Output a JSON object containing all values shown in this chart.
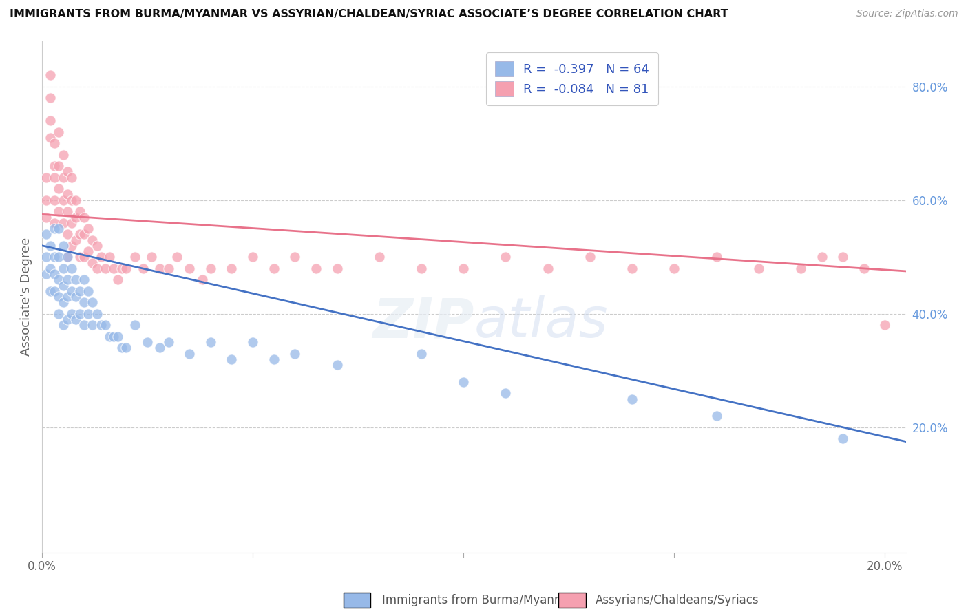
{
  "title": "IMMIGRANTS FROM BURMA/MYANMAR VS ASSYRIAN/CHALDEAN/SYRIAC ASSOCIATE’S DEGREE CORRELATION CHART",
  "source": "Source: ZipAtlas.com",
  "ylabel": "Associate's Degree",
  "right_ytick_vals": [
    0.2,
    0.4,
    0.6,
    0.8
  ],
  "right_ytick_labels": [
    "20.0%",
    "40.0%",
    "60.0%",
    "80.0%"
  ],
  "xtick_positions": [
    0.0,
    0.05,
    0.1,
    0.15,
    0.2
  ],
  "xtick_labels": [
    "0.0%",
    "",
    "",
    "",
    "20.0%"
  ],
  "xlim": [
    0.0,
    0.205
  ],
  "ylim": [
    -0.02,
    0.88
  ],
  "watermark": "ZIPatlas",
  "blue_color": "#97B9E8",
  "pink_color": "#F5A0B0",
  "blue_line_color": "#4472C4",
  "pink_line_color": "#E8728A",
  "footer_blue_label": "Immigrants from Burma/Myanmar",
  "footer_pink_label": "Assyrians/Chaldeans/Syriacs",
  "blue_x": [
    0.001,
    0.001,
    0.001,
    0.002,
    0.002,
    0.002,
    0.003,
    0.003,
    0.003,
    0.003,
    0.004,
    0.004,
    0.004,
    0.004,
    0.004,
    0.005,
    0.005,
    0.005,
    0.005,
    0.005,
    0.006,
    0.006,
    0.006,
    0.006,
    0.007,
    0.007,
    0.007,
    0.008,
    0.008,
    0.008,
    0.009,
    0.009,
    0.01,
    0.01,
    0.01,
    0.011,
    0.011,
    0.012,
    0.012,
    0.013,
    0.014,
    0.015,
    0.016,
    0.017,
    0.018,
    0.019,
    0.02,
    0.022,
    0.025,
    0.028,
    0.03,
    0.035,
    0.04,
    0.045,
    0.05,
    0.055,
    0.06,
    0.07,
    0.09,
    0.1,
    0.11,
    0.14,
    0.16,
    0.19
  ],
  "blue_y": [
    0.54,
    0.5,
    0.47,
    0.52,
    0.48,
    0.44,
    0.55,
    0.5,
    0.47,
    0.44,
    0.55,
    0.5,
    0.46,
    0.43,
    0.4,
    0.52,
    0.48,
    0.45,
    0.42,
    0.38,
    0.5,
    0.46,
    0.43,
    0.39,
    0.48,
    0.44,
    0.4,
    0.46,
    0.43,
    0.39,
    0.44,
    0.4,
    0.46,
    0.42,
    0.38,
    0.44,
    0.4,
    0.42,
    0.38,
    0.4,
    0.38,
    0.38,
    0.36,
    0.36,
    0.36,
    0.34,
    0.34,
    0.38,
    0.35,
    0.34,
    0.35,
    0.33,
    0.35,
    0.32,
    0.35,
    0.32,
    0.33,
    0.31,
    0.33,
    0.28,
    0.26,
    0.25,
    0.22,
    0.18
  ],
  "pink_x": [
    0.001,
    0.001,
    0.001,
    0.002,
    0.002,
    0.002,
    0.002,
    0.003,
    0.003,
    0.003,
    0.003,
    0.003,
    0.004,
    0.004,
    0.004,
    0.004,
    0.005,
    0.005,
    0.005,
    0.005,
    0.006,
    0.006,
    0.006,
    0.006,
    0.006,
    0.007,
    0.007,
    0.007,
    0.007,
    0.008,
    0.008,
    0.008,
    0.009,
    0.009,
    0.009,
    0.01,
    0.01,
    0.01,
    0.011,
    0.011,
    0.012,
    0.012,
    0.013,
    0.013,
    0.014,
    0.015,
    0.016,
    0.017,
    0.018,
    0.019,
    0.02,
    0.022,
    0.024,
    0.026,
    0.028,
    0.03,
    0.032,
    0.035,
    0.038,
    0.04,
    0.045,
    0.05,
    0.055,
    0.06,
    0.065,
    0.07,
    0.08,
    0.09,
    0.1,
    0.11,
    0.12,
    0.13,
    0.14,
    0.15,
    0.16,
    0.17,
    0.18,
    0.185,
    0.19,
    0.195,
    0.2
  ],
  "pink_y": [
    0.57,
    0.6,
    0.64,
    0.78,
    0.82,
    0.71,
    0.74,
    0.66,
    0.7,
    0.64,
    0.6,
    0.56,
    0.66,
    0.72,
    0.62,
    0.58,
    0.68,
    0.64,
    0.6,
    0.56,
    0.65,
    0.61,
    0.58,
    0.54,
    0.5,
    0.64,
    0.6,
    0.56,
    0.52,
    0.6,
    0.57,
    0.53,
    0.58,
    0.54,
    0.5,
    0.57,
    0.54,
    0.5,
    0.55,
    0.51,
    0.53,
    0.49,
    0.52,
    0.48,
    0.5,
    0.48,
    0.5,
    0.48,
    0.46,
    0.48,
    0.48,
    0.5,
    0.48,
    0.5,
    0.48,
    0.48,
    0.5,
    0.48,
    0.46,
    0.48,
    0.48,
    0.5,
    0.48,
    0.5,
    0.48,
    0.48,
    0.5,
    0.48,
    0.48,
    0.5,
    0.48,
    0.5,
    0.48,
    0.48,
    0.5,
    0.48,
    0.48,
    0.5,
    0.5,
    0.48,
    0.38
  ]
}
